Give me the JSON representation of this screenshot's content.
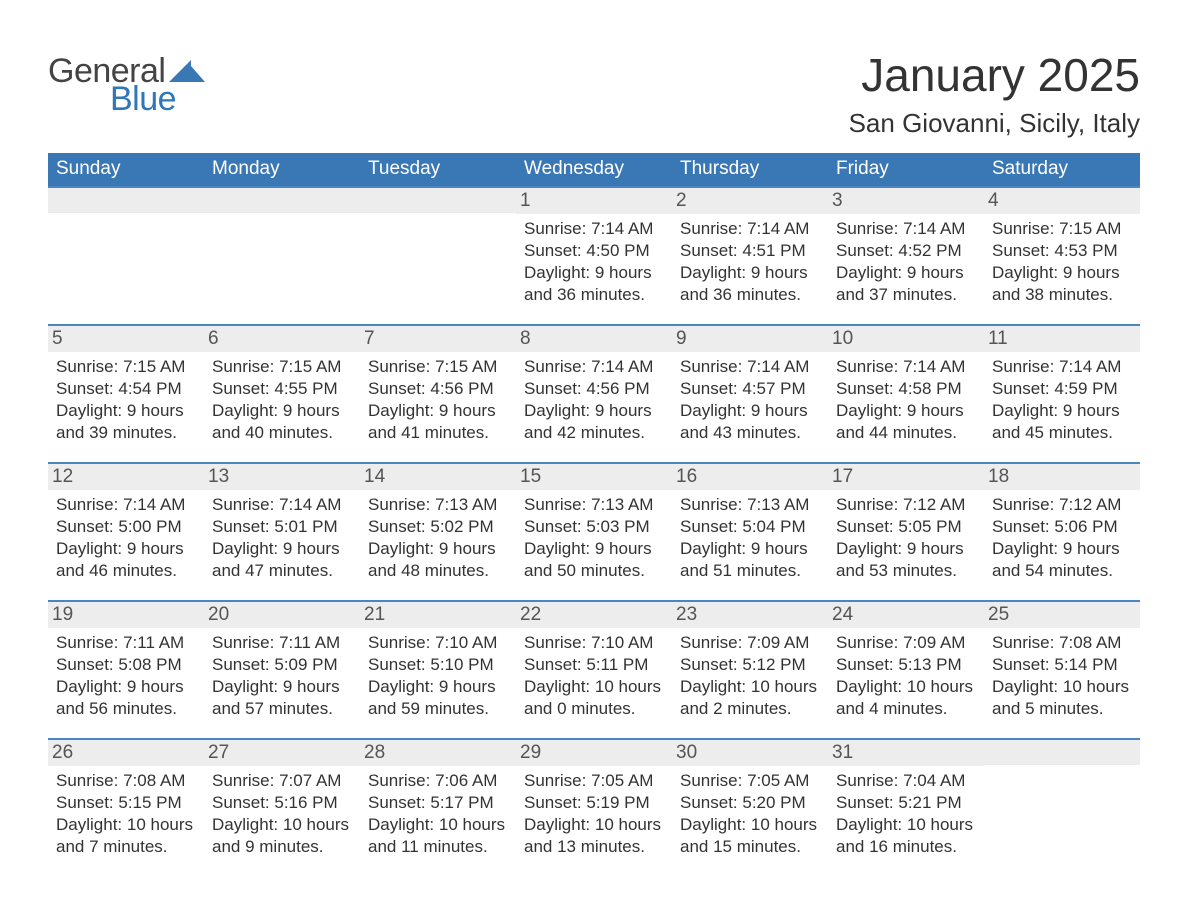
{
  "logo": {
    "word1": "General",
    "word2": "Blue",
    "brand_color": "#2f77b7"
  },
  "title": "January 2025",
  "location": "San Giovanni, Sicily, Italy",
  "colors": {
    "header_bg": "#3a78b5",
    "header_text": "#ffffff",
    "week_border": "#4a86c0",
    "daynum_bg": "#ededed",
    "text": "#333333"
  },
  "dayNames": [
    "Sunday",
    "Monday",
    "Tuesday",
    "Wednesday",
    "Thursday",
    "Friday",
    "Saturday"
  ],
  "weeks": [
    [
      null,
      null,
      null,
      {
        "n": "1",
        "sunrise": "7:14 AM",
        "sunset": "4:50 PM",
        "dlh": "9",
        "dlm": "36"
      },
      {
        "n": "2",
        "sunrise": "7:14 AM",
        "sunset": "4:51 PM",
        "dlh": "9",
        "dlm": "36"
      },
      {
        "n": "3",
        "sunrise": "7:14 AM",
        "sunset": "4:52 PM",
        "dlh": "9",
        "dlm": "37"
      },
      {
        "n": "4",
        "sunrise": "7:15 AM",
        "sunset": "4:53 PM",
        "dlh": "9",
        "dlm": "38"
      }
    ],
    [
      {
        "n": "5",
        "sunrise": "7:15 AM",
        "sunset": "4:54 PM",
        "dlh": "9",
        "dlm": "39"
      },
      {
        "n": "6",
        "sunrise": "7:15 AM",
        "sunset": "4:55 PM",
        "dlh": "9",
        "dlm": "40"
      },
      {
        "n": "7",
        "sunrise": "7:15 AM",
        "sunset": "4:56 PM",
        "dlh": "9",
        "dlm": "41"
      },
      {
        "n": "8",
        "sunrise": "7:14 AM",
        "sunset": "4:56 PM",
        "dlh": "9",
        "dlm": "42"
      },
      {
        "n": "9",
        "sunrise": "7:14 AM",
        "sunset": "4:57 PM",
        "dlh": "9",
        "dlm": "43"
      },
      {
        "n": "10",
        "sunrise": "7:14 AM",
        "sunset": "4:58 PM",
        "dlh": "9",
        "dlm": "44"
      },
      {
        "n": "11",
        "sunrise": "7:14 AM",
        "sunset": "4:59 PM",
        "dlh": "9",
        "dlm": "45"
      }
    ],
    [
      {
        "n": "12",
        "sunrise": "7:14 AM",
        "sunset": "5:00 PM",
        "dlh": "9",
        "dlm": "46"
      },
      {
        "n": "13",
        "sunrise": "7:14 AM",
        "sunset": "5:01 PM",
        "dlh": "9",
        "dlm": "47"
      },
      {
        "n": "14",
        "sunrise": "7:13 AM",
        "sunset": "5:02 PM",
        "dlh": "9",
        "dlm": "48"
      },
      {
        "n": "15",
        "sunrise": "7:13 AM",
        "sunset": "5:03 PM",
        "dlh": "9",
        "dlm": "50"
      },
      {
        "n": "16",
        "sunrise": "7:13 AM",
        "sunset": "5:04 PM",
        "dlh": "9",
        "dlm": "51"
      },
      {
        "n": "17",
        "sunrise": "7:12 AM",
        "sunset": "5:05 PM",
        "dlh": "9",
        "dlm": "53"
      },
      {
        "n": "18",
        "sunrise": "7:12 AM",
        "sunset": "5:06 PM",
        "dlh": "9",
        "dlm": "54"
      }
    ],
    [
      {
        "n": "19",
        "sunrise": "7:11 AM",
        "sunset": "5:08 PM",
        "dlh": "9",
        "dlm": "56"
      },
      {
        "n": "20",
        "sunrise": "7:11 AM",
        "sunset": "5:09 PM",
        "dlh": "9",
        "dlm": "57"
      },
      {
        "n": "21",
        "sunrise": "7:10 AM",
        "sunset": "5:10 PM",
        "dlh": "9",
        "dlm": "59"
      },
      {
        "n": "22",
        "sunrise": "7:10 AM",
        "sunset": "5:11 PM",
        "dlh": "10",
        "dlm": "0"
      },
      {
        "n": "23",
        "sunrise": "7:09 AM",
        "sunset": "5:12 PM",
        "dlh": "10",
        "dlm": "2"
      },
      {
        "n": "24",
        "sunrise": "7:09 AM",
        "sunset": "5:13 PM",
        "dlh": "10",
        "dlm": "4"
      },
      {
        "n": "25",
        "sunrise": "7:08 AM",
        "sunset": "5:14 PM",
        "dlh": "10",
        "dlm": "5"
      }
    ],
    [
      {
        "n": "26",
        "sunrise": "7:08 AM",
        "sunset": "5:15 PM",
        "dlh": "10",
        "dlm": "7"
      },
      {
        "n": "27",
        "sunrise": "7:07 AM",
        "sunset": "5:16 PM",
        "dlh": "10",
        "dlm": "9"
      },
      {
        "n": "28",
        "sunrise": "7:06 AM",
        "sunset": "5:17 PM",
        "dlh": "10",
        "dlm": "11"
      },
      {
        "n": "29",
        "sunrise": "7:05 AM",
        "sunset": "5:19 PM",
        "dlh": "10",
        "dlm": "13"
      },
      {
        "n": "30",
        "sunrise": "7:05 AM",
        "sunset": "5:20 PM",
        "dlh": "10",
        "dlm": "15"
      },
      {
        "n": "31",
        "sunrise": "7:04 AM",
        "sunset": "5:21 PM",
        "dlh": "10",
        "dlm": "16"
      },
      null
    ]
  ],
  "labels": {
    "sunrise": "Sunrise:",
    "sunset": "Sunset:",
    "daylight": "Daylight:",
    "hours_word": "hours",
    "and_word": "and",
    "minutes_word": "minutes."
  }
}
